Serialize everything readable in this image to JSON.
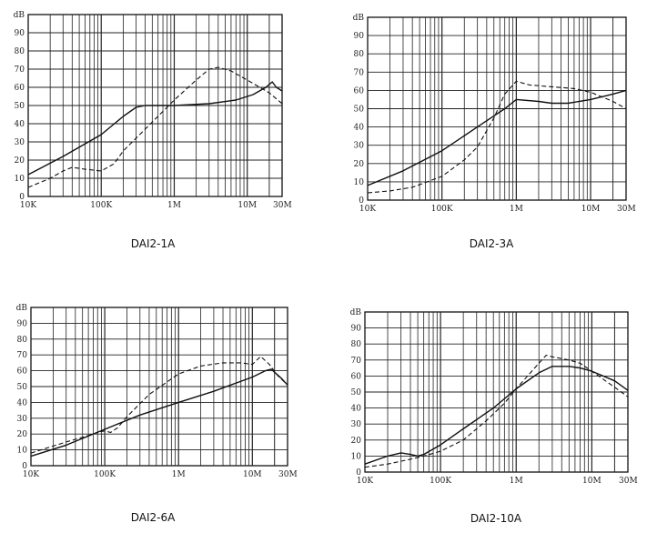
{
  "chart_data": [
    {
      "type": "line",
      "title": "DAI2-1A",
      "ylabel": "dB",
      "x_scale": "log",
      "xlim": [
        10000,
        30000000
      ],
      "ylim": [
        0,
        100
      ],
      "grid": true,
      "y_ticks": [
        "0",
        "10",
        "20",
        "30",
        "40",
        "50",
        "60",
        "70",
        "80",
        "90",
        "dB"
      ],
      "x_ticks": [
        {
          "value": 10000,
          "label": "10K"
        },
        {
          "value": 100000,
          "label": "100K"
        },
        {
          "value": 1000000,
          "label": "1M"
        },
        {
          "value": 10000000,
          "label": "10M"
        },
        {
          "value": 30000000,
          "label": "30M"
        }
      ],
      "series": [
        {
          "style": "solid",
          "points": [
            [
              10000,
              12
            ],
            [
              30000,
              22
            ],
            [
              100000,
              34
            ],
            [
              200000,
              44
            ],
            [
              300000,
              49
            ],
            [
              400000,
              50
            ],
            [
              1000000,
              50
            ],
            [
              3000000,
              51
            ],
            [
              7000000,
              53
            ],
            [
              12000000,
              56
            ],
            [
              18000000,
              60
            ],
            [
              22000000,
              63
            ],
            [
              25000000,
              60
            ],
            [
              30000000,
              58
            ]
          ]
        },
        {
          "style": "dashed",
          "points": [
            [
              10000,
              5
            ],
            [
              20000,
              10
            ],
            [
              30000,
              14
            ],
            [
              40000,
              16
            ],
            [
              60000,
              15
            ],
            [
              100000,
              14
            ],
            [
              150000,
              18
            ],
            [
              200000,
              25
            ],
            [
              400000,
              37
            ],
            [
              1000000,
              53
            ],
            [
              2000000,
              64
            ],
            [
              3000000,
              70
            ],
            [
              4000000,
              71
            ],
            [
              6000000,
              69
            ],
            [
              10000000,
              64
            ],
            [
              20000000,
              57
            ],
            [
              30000000,
              51
            ]
          ]
        }
      ]
    },
    {
      "type": "line",
      "title": "DAI2-3A",
      "ylabel": "dB",
      "x_scale": "log",
      "xlim": [
        10000,
        30000000
      ],
      "ylim": [
        0,
        100
      ],
      "grid": true,
      "y_ticks": [
        "0",
        "10",
        "20",
        "30",
        "40",
        "50",
        "60",
        "70",
        "80",
        "90",
        "dB"
      ],
      "x_ticks": [
        {
          "value": 10000,
          "label": "10K"
        },
        {
          "value": 100000,
          "label": "100K"
        },
        {
          "value": 1000000,
          "label": "1M"
        },
        {
          "value": 10000000,
          "label": "10M"
        },
        {
          "value": 30000000,
          "label": "30M"
        }
      ],
      "series": [
        {
          "style": "solid",
          "points": [
            [
              10000,
              8
            ],
            [
              30000,
              16
            ],
            [
              100000,
              27
            ],
            [
              300000,
              40
            ],
            [
              700000,
              50
            ],
            [
              1000000,
              55
            ],
            [
              2000000,
              54
            ],
            [
              3000000,
              53
            ],
            [
              5000000,
              53
            ],
            [
              10000000,
              55
            ],
            [
              20000000,
              58
            ],
            [
              30000000,
              60
            ]
          ]
        },
        {
          "style": "dashed",
          "points": [
            [
              10000,
              4
            ],
            [
              20000,
              5
            ],
            [
              40000,
              7
            ],
            [
              100000,
              13
            ],
            [
              200000,
              22
            ],
            [
              300000,
              29
            ],
            [
              500000,
              45
            ],
            [
              700000,
              58
            ],
            [
              1000000,
              65
            ],
            [
              1500000,
              63
            ],
            [
              3000000,
              62
            ],
            [
              6000000,
              61
            ],
            [
              10000000,
              59
            ],
            [
              20000000,
              54
            ],
            [
              30000000,
              50
            ]
          ]
        }
      ]
    },
    {
      "type": "line",
      "title": "DAI2-6A",
      "ylabel": "dB",
      "x_scale": "log",
      "xlim": [
        10000,
        30000000
      ],
      "ylim": [
        0,
        100
      ],
      "grid": true,
      "y_ticks": [
        "0",
        "10",
        "20",
        "30",
        "40",
        "50",
        "60",
        "70",
        "80",
        "90",
        "dB"
      ],
      "x_ticks": [
        {
          "value": 10000,
          "label": "10K"
        },
        {
          "value": 100000,
          "label": "100K"
        },
        {
          "value": 1000000,
          "label": "1M"
        },
        {
          "value": 10000000,
          "label": "10M"
        },
        {
          "value": 30000000,
          "label": "30M"
        }
      ],
      "series": [
        {
          "style": "solid",
          "points": [
            [
              10000,
              6
            ],
            [
              30000,
              13
            ],
            [
              100000,
              23
            ],
            [
              300000,
              32
            ],
            [
              1000000,
              40
            ],
            [
              3000000,
              47
            ],
            [
              10000000,
              56
            ],
            [
              15000000,
              60
            ],
            [
              18000000,
              61
            ],
            [
              25000000,
              55
            ],
            [
              30000000,
              51
            ]
          ]
        },
        {
          "style": "dashed",
          "points": [
            [
              10000,
              8
            ],
            [
              30000,
              15
            ],
            [
              60000,
              19
            ],
            [
              80000,
              21
            ],
            [
              100000,
              22
            ],
            [
              120000,
              21
            ],
            [
              150000,
              24
            ],
            [
              200000,
              31
            ],
            [
              400000,
              45
            ],
            [
              1000000,
              58
            ],
            [
              2000000,
              63
            ],
            [
              4000000,
              65
            ],
            [
              7000000,
              65
            ],
            [
              10000000,
              64
            ],
            [
              13000000,
              69
            ],
            [
              17000000,
              64
            ],
            [
              22000000,
              57
            ],
            [
              30000000,
              51
            ]
          ]
        }
      ]
    },
    {
      "type": "line",
      "title": "DAI2-10A",
      "ylabel": "dB",
      "x_scale": "log",
      "xlim": [
        10000,
        30000000
      ],
      "ylim": [
        0,
        100
      ],
      "grid": true,
      "y_ticks": [
        "0",
        "10",
        "20",
        "30",
        "40",
        "50",
        "60",
        "70",
        "80",
        "90",
        "dB"
      ],
      "x_ticks": [
        {
          "value": 10000,
          "label": "10K"
        },
        {
          "value": 100000,
          "label": "100K"
        },
        {
          "value": 1000000,
          "label": "1M"
        },
        {
          "value": 10000000,
          "label": "10M"
        },
        {
          "value": 30000000,
          "label": "30M"
        }
      ],
      "series": [
        {
          "style": "solid",
          "points": [
            [
              10000,
              5
            ],
            [
              20000,
              10
            ],
            [
              30000,
              12
            ],
            [
              40000,
              11
            ],
            [
              50000,
              10
            ],
            [
              60000,
              11
            ],
            [
              100000,
              17
            ],
            [
              200000,
              27
            ],
            [
              500000,
              40
            ],
            [
              1000000,
              52
            ],
            [
              2000000,
              62
            ],
            [
              3000000,
              66
            ],
            [
              5000000,
              66
            ],
            [
              7000000,
              65
            ],
            [
              10000000,
              63
            ],
            [
              20000000,
              57
            ],
            [
              30000000,
              51
            ]
          ]
        },
        {
          "style": "dashed",
          "points": [
            [
              10000,
              3
            ],
            [
              20000,
              5
            ],
            [
              40000,
              8
            ],
            [
              60000,
              10
            ],
            [
              100000,
              13
            ],
            [
              200000,
              20
            ],
            [
              400000,
              32
            ],
            [
              700000,
              43
            ],
            [
              1000000,
              52
            ],
            [
              2000000,
              68
            ],
            [
              2500000,
              73
            ],
            [
              3000000,
              72
            ],
            [
              5000000,
              70
            ],
            [
              7000000,
              68
            ],
            [
              10000000,
              63
            ],
            [
              20000000,
              53
            ],
            [
              30000000,
              47
            ]
          ]
        }
      ]
    }
  ]
}
